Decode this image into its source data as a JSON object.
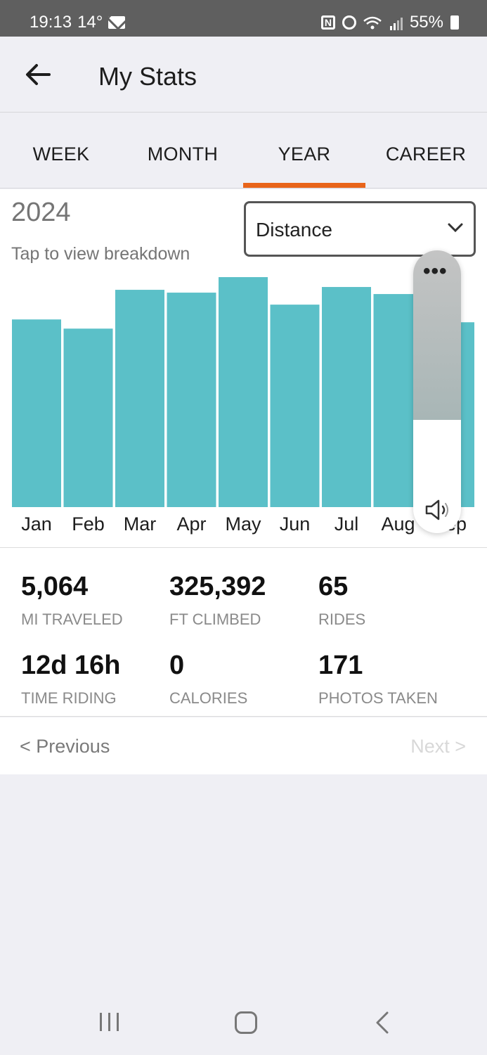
{
  "status_bar": {
    "time": "19:13",
    "temperature": "14°",
    "battery": "55%",
    "icons": [
      "mail-icon",
      "nfc-icon",
      "alarm-icon",
      "wifi-icon",
      "signal-icon",
      "battery-icon"
    ]
  },
  "header": {
    "title": "My Stats",
    "back_icon": "arrow-left-icon"
  },
  "tabs": [
    {
      "label": "WEEK",
      "active": false
    },
    {
      "label": "MONTH",
      "active": false
    },
    {
      "label": "YEAR",
      "active": true
    },
    {
      "label": "CAREER",
      "active": false
    }
  ],
  "accent_color": "#e8641a",
  "chart": {
    "year": "2024",
    "hint": "Tap to view breakdown",
    "metric_selected": "Distance",
    "bar_color": "#5bc0c8"
  },
  "chart_data": {
    "type": "bar",
    "categories": [
      "Jan",
      "Feb",
      "Mar",
      "Apr",
      "May",
      "Jun",
      "Jul",
      "Aug",
      "Sep"
    ],
    "values": [
      266,
      253,
      308,
      304,
      326,
      287,
      312,
      302,
      262
    ],
    "relative_to_max": true,
    "xlabel": "",
    "ylabel": "",
    "grid": false
  },
  "stats": [
    {
      "value": "5,064",
      "label": "MI TRAVELED"
    },
    {
      "value": "325,392",
      "label": "FT CLIMBED"
    },
    {
      "value": "65",
      "label": "RIDES"
    },
    {
      "value": "12d 16h",
      "label": "TIME RIDING"
    },
    {
      "value": "0",
      "label": "CALORIES"
    },
    {
      "value": "171",
      "label": "PHOTOS TAKEN"
    }
  ],
  "pager": {
    "previous": "< Previous",
    "next": "Next >"
  },
  "volume_overlay": {
    "more_label": "•••",
    "level": 0.6,
    "icon": "speaker-icon"
  },
  "nav_bar": {
    "icons": [
      "recent-apps-icon",
      "home-icon",
      "back-icon"
    ]
  }
}
